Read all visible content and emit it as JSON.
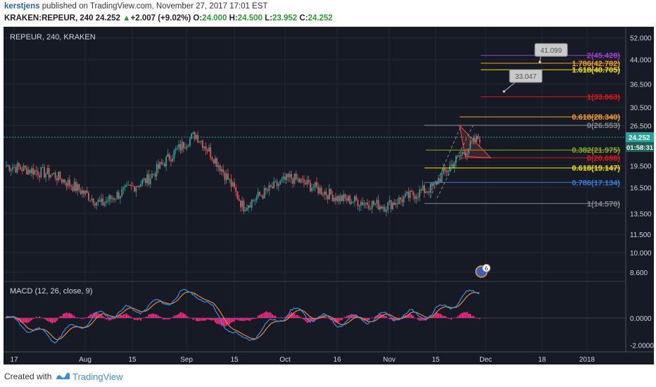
{
  "header": {
    "author": "kerstjens",
    "published_text": "published on TradingView.com, November 27, 2017 17:01 EST",
    "symbol": "KRAKEN:REPEUR, 240",
    "last": "24.252",
    "change": "+2.007 (+9.02%)",
    "o_label": "O:",
    "o_val": "24.000",
    "h_label": "H:",
    "h_val": "24.500",
    "l_label": "L:",
    "l_val": "23.952",
    "c_label": "C:",
    "c_val": "24.252"
  },
  "legend": {
    "main": "REPEUR, 240, KRAKEN",
    "macd": "MACD (12, 26, close, 9)"
  },
  "footer": {
    "created_with": "Created with",
    "brand": "TradingView"
  },
  "colors": {
    "background": "#161a25",
    "up": "#26a69a",
    "down": "#ef5350",
    "macd_line": "#3d8fdc",
    "signal_line": "#e8883a",
    "histogram": "#ff2a8a"
  },
  "price_axis_ticks": [
    "52.000",
    "44.000",
    "36.500",
    "30.500",
    "26.500",
    "19.500",
    "16.500",
    "13.500",
    "11.500",
    "10.000",
    "8.600"
  ],
  "macd_axis_ticks": [
    "0.0000",
    "-2.0000"
  ],
  "time_axis_ticks": [
    "17",
    "Aug",
    "15",
    "Sep",
    "15",
    "Oct",
    "16",
    "Nov",
    "15",
    "Dec",
    "18",
    "2018"
  ],
  "current_price_tag": "24.252",
  "countdown_tag": "01:58:31",
  "fib_levels": [
    {
      "label": "2(45.428)",
      "color": "#9c3fd0"
    },
    {
      "label": "1.786(42.782)",
      "color": "#f0a020"
    },
    {
      "label": "1.618(40.705)",
      "color": "#f5e400"
    },
    {
      "label": "1(33.063)",
      "color": "#e01818"
    },
    {
      "label": "0.618(28.340)",
      "color": "#f0a020"
    },
    {
      "label": "0(26.553)",
      "color": "#888888"
    },
    {
      "label": "0.382(21.975)",
      "color": "#8aaa22"
    },
    {
      "label": "0(20.698)",
      "color": "#e01818"
    },
    {
      "label": "0.618(19.147)",
      "color": "#f5e400"
    },
    {
      "label": "0.786(17.134)",
      "color": "#3a7ccc"
    },
    {
      "label": "1(14.570)",
      "color": "#888888"
    }
  ],
  "callouts": [
    "41.099",
    "33.047"
  ],
  "events_badge": "6",
  "chart_data": {
    "type": "candlestick",
    "symbol": "REPEUR",
    "interval": "240",
    "exchange": "KRAKEN",
    "y_scale": "log",
    "ylim": [
      7.8,
      56
    ],
    "x": [
      "Jul 6",
      "Jul 17",
      "Aug 1",
      "Aug 15",
      "Sep 1",
      "Sep 15",
      "Oct 1",
      "Oct 16",
      "Nov 1",
      "Nov 15",
      "Nov 27"
    ],
    "close": [
      19.5,
      18.2,
      14.5,
      17.6,
      24.8,
      14.2,
      17.8,
      15.2,
      14.3,
      16.5,
      24.252
    ],
    "macd": [
      0.0,
      -1.5,
      0.2,
      0.8,
      2.0,
      -1.8,
      0.5,
      -0.3,
      0.1,
      0.3,
      2.1
    ],
    "macd_ylim": [
      -2.4,
      2.6
    ]
  }
}
